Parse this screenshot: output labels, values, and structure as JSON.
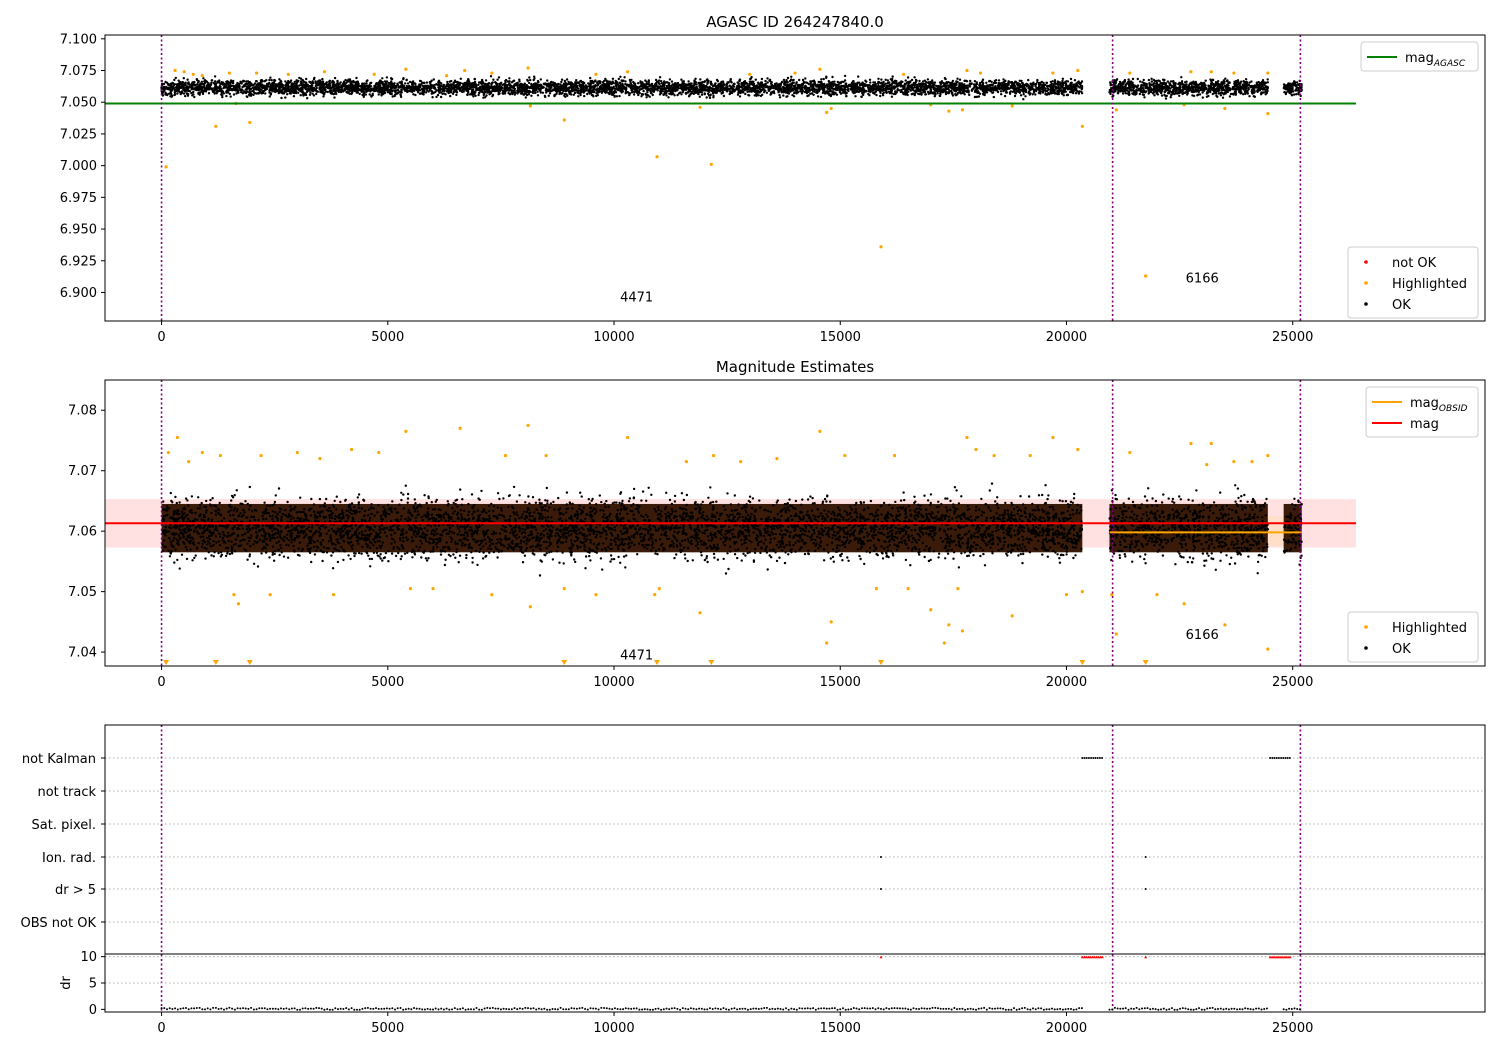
{
  "chart_data": [
    {
      "type": "scatter",
      "title": "AGASC ID 264247840.0",
      "xlim": [
        -1250,
        29250
      ],
      "ylim": [
        6.8775,
        7.103
      ],
      "x_ticks": [
        0,
        5000,
        10000,
        15000,
        20000,
        25000
      ],
      "x_tick_labels": [
        "0",
        "5000",
        "10000",
        "15000",
        "20000",
        "25000"
      ],
      "y_ticks": [
        6.9,
        6.925,
        6.95,
        6.975,
        7.0,
        7.025,
        7.05,
        7.075,
        7.1
      ],
      "y_tick_labels": [
        "6.900",
        "6.925",
        "6.950",
        "6.975",
        "7.000",
        "7.025",
        "7.050",
        "7.075",
        "7.100"
      ],
      "obs_boundaries": [
        0,
        21020,
        25170
      ],
      "obs_segments": [
        [
          0,
          20350
        ],
        [
          20950,
          24450
        ],
        [
          24800,
          25200
        ]
      ],
      "obs_labels": [
        {
          "x": 10500,
          "y": 6.893,
          "text": "4471"
        },
        {
          "x": 23000,
          "y": 6.908,
          "text": "6166"
        }
      ],
      "point_band": {
        "center": 7.0615,
        "spread": 0.0055
      },
      "lines": [
        {
          "label_main": "mag",
          "label_sub": "AGASC",
          "color": "#008000",
          "y": 7.049,
          "x_range": [
            -1250,
            26400
          ]
        }
      ],
      "highlighted_points": [
        [
          100,
          6.999
        ],
        [
          300,
          7.075
        ],
        [
          500,
          7.074
        ],
        [
          700,
          7.072
        ],
        [
          900,
          7.071
        ],
        [
          1200,
          7.031
        ],
        [
          1500,
          7.073
        ],
        [
          1650,
          7.049
        ],
        [
          1950,
          7.034
        ],
        [
          2100,
          7.073
        ],
        [
          2800,
          7.072
        ],
        [
          3600,
          7.074
        ],
        [
          4700,
          7.072
        ],
        [
          5400,
          7.076
        ],
        [
          6300,
          7.071
        ],
        [
          6700,
          7.075
        ],
        [
          7300,
          7.073
        ],
        [
          8100,
          7.077
        ],
        [
          8150,
          7.047
        ],
        [
          8900,
          7.036
        ],
        [
          9600,
          7.072
        ],
        [
          10300,
          7.074
        ],
        [
          10950,
          7.007
        ],
        [
          11900,
          7.046
        ],
        [
          12150,
          7.001
        ],
        [
          13000,
          7.072
        ],
        [
          14000,
          7.073
        ],
        [
          14550,
          7.076
        ],
        [
          14700,
          7.042
        ],
        [
          14800,
          7.045
        ],
        [
          15900,
          6.936
        ],
        [
          16400,
          7.072
        ],
        [
          17000,
          7.048
        ],
        [
          17400,
          7.043
        ],
        [
          17700,
          7.044
        ],
        [
          17800,
          7.075
        ],
        [
          18100,
          7.073
        ],
        [
          18800,
          7.047
        ],
        [
          19700,
          7.073
        ],
        [
          20250,
          7.075
        ],
        [
          20350,
          7.031
        ],
        [
          21100,
          7.044
        ],
        [
          21400,
          7.073
        ],
        [
          21750,
          6.913
        ],
        [
          22600,
          7.048
        ],
        [
          22750,
          7.074
        ],
        [
          23200,
          7.074
        ],
        [
          23500,
          7.045
        ],
        [
          23700,
          7.073
        ],
        [
          24450,
          7.041
        ],
        [
          24450,
          7.073
        ]
      ],
      "legend_lines": [
        {
          "label_main": "mag",
          "label_sub": "AGASC",
          "color": "#008000"
        }
      ],
      "legend_points": [
        {
          "label": "not OK",
          "color": "#ff0000"
        },
        {
          "label": "Highlighted",
          "color": "#ffa500"
        },
        {
          "label": "OK",
          "color": "#000000"
        }
      ]
    },
    {
      "type": "scatter",
      "title": "Magnitude Estimates",
      "xlim": [
        -1250,
        29250
      ],
      "ylim": [
        7.0377,
        7.085
      ],
      "x_ticks": [
        0,
        5000,
        10000,
        15000,
        20000,
        25000
      ],
      "x_tick_labels": [
        "0",
        "5000",
        "10000",
        "15000",
        "20000",
        "25000"
      ],
      "y_ticks": [
        7.04,
        7.05,
        7.06,
        7.07,
        7.08
      ],
      "y_tick_labels": [
        "7.04",
        "7.05",
        "7.06",
        "7.07",
        "7.08"
      ],
      "obs_boundaries": [
        0,
        21020,
        25170
      ],
      "obs_segments": [
        [
          0,
          20350
        ],
        [
          20950,
          24450
        ],
        [
          24800,
          25200
        ]
      ],
      "obs_labels": [
        {
          "x": 10500,
          "y": 7.0388,
          "text": "4471"
        },
        {
          "x": 23000,
          "y": 7.0422,
          "text": "6166"
        }
      ],
      "point_band": {
        "center": 7.0605,
        "spread": 0.0045
      },
      "shaded_bands": [
        {
          "x_range": [
            -1250,
            26400
          ],
          "y_range": [
            7.0573,
            7.0653
          ],
          "color": "#ffb3b3"
        },
        {
          "x_range": [
            20950,
            25200
          ],
          "y_range": [
            7.0575,
            7.0625
          ],
          "color": "#ffd9a8"
        }
      ],
      "lines": [
        {
          "label_main": "mag",
          "label_sub": "OBSID",
          "color": "#ffa500",
          "y": 7.0598,
          "x_range": [
            20950,
            25200
          ]
        },
        {
          "label_main": "mag",
          "label_sub": "",
          "color": "#ff0000",
          "y": 7.0613,
          "x_range": [
            -1250,
            26400
          ]
        }
      ],
      "highlighted_points": [
        [
          150,
          7.073
        ],
        [
          350,
          7.0755
        ],
        [
          600,
          7.0715
        ],
        [
          900,
          7.073
        ],
        [
          1300,
          7.0725
        ],
        [
          1600,
          7.0495
        ],
        [
          1700,
          7.048
        ],
        [
          2200,
          7.0725
        ],
        [
          2400,
          7.0495
        ],
        [
          3000,
          7.073
        ],
        [
          3500,
          7.072
        ],
        [
          3800,
          7.0495
        ],
        [
          4200,
          7.0735
        ],
        [
          4800,
          7.073
        ],
        [
          5400,
          7.0765
        ],
        [
          5500,
          7.0505
        ],
        [
          6000,
          7.0505
        ],
        [
          6600,
          7.077
        ],
        [
          7300,
          7.0495
        ],
        [
          7600,
          7.0725
        ],
        [
          8100,
          7.0775
        ],
        [
          8150,
          7.0475
        ],
        [
          8500,
          7.0725
        ],
        [
          8900,
          7.0505
        ],
        [
          9600,
          7.0495
        ],
        [
          10300,
          7.0755
        ],
        [
          10900,
          7.0495
        ],
        [
          11000,
          7.0505
        ],
        [
          11600,
          7.0715
        ],
        [
          11900,
          7.0465
        ],
        [
          12200,
          7.0725
        ],
        [
          12800,
          7.0715
        ],
        [
          13600,
          7.072
        ],
        [
          14550,
          7.0765
        ],
        [
          14700,
          7.0415
        ],
        [
          14800,
          7.045
        ],
        [
          15100,
          7.0725
        ],
        [
          15800,
          7.0505
        ],
        [
          16200,
          7.0725
        ],
        [
          16500,
          7.0505
        ],
        [
          17000,
          7.047
        ],
        [
          17300,
          7.0415
        ],
        [
          17400,
          7.0445
        ],
        [
          17600,
          7.0505
        ],
        [
          17800,
          7.0755
        ],
        [
          17700,
          7.0435
        ],
        [
          18000,
          7.0735
        ],
        [
          18400,
          7.0725
        ],
        [
          18800,
          7.046
        ],
        [
          19200,
          7.0725
        ],
        [
          19700,
          7.0755
        ],
        [
          20000,
          7.0495
        ],
        [
          20250,
          7.0735
        ],
        [
          20350,
          7.05
        ],
        [
          21000,
          7.0495
        ],
        [
          21100,
          7.043
        ],
        [
          21400,
          7.073
        ],
        [
          22000,
          7.0495
        ],
        [
          22600,
          7.048
        ],
        [
          22750,
          7.0745
        ],
        [
          23100,
          7.071
        ],
        [
          23200,
          7.0745
        ],
        [
          23500,
          7.0445
        ],
        [
          23700,
          7.0715
        ],
        [
          24100,
          7.0715
        ],
        [
          24450,
          7.0405
        ],
        [
          24450,
          7.0725
        ]
      ],
      "lower_limit_markers": [
        100,
        1200,
        1950,
        8900,
        10950,
        12150,
        15900,
        20350,
        21750
      ],
      "legend_lines": [
        {
          "label_main": "mag",
          "label_sub": "OBSID",
          "color": "#ffa500"
        },
        {
          "label_main": "mag",
          "label_sub": "",
          "color": "#ff0000"
        }
      ],
      "legend_points": [
        {
          "label": "Highlighted",
          "color": "#ffa500"
        },
        {
          "label": "OK",
          "color": "#000000"
        }
      ]
    },
    {
      "type": "scatter",
      "title": "",
      "xlim": [
        -1250,
        29250
      ],
      "categories": [
        "not Kalman",
        "not track",
        "Sat. pixel.",
        "Ion. rad.",
        "dr > 5",
        "OBS not OK"
      ],
      "obs_boundaries": [
        0,
        21020,
        25170
      ],
      "flag_points": {
        "not Kalman": [
          [
            20350,
            20800
          ],
          [
            24500,
            24950
          ]
        ],
        "not track": [],
        "Sat. pixel.": [],
        "Ion. rad.": [
          [
            15900,
            15900
          ],
          [
            21750,
            21750
          ]
        ],
        "dr > 5": [
          [
            15900,
            15900
          ],
          [
            21750,
            21750
          ]
        ],
        "OBS not OK": []
      }
    },
    {
      "type": "scatter",
      "title": "",
      "xlim": [
        -1250,
        29250
      ],
      "ylim": [
        -0.5,
        10.5
      ],
      "ylabel": "dr",
      "y_ticks": [
        0,
        5,
        10
      ],
      "y_tick_labels": [
        "0",
        "5",
        "10"
      ],
      "x_ticks": [
        0,
        5000,
        10000,
        15000,
        20000,
        25000
      ],
      "x_tick_labels": [
        "0",
        "5000",
        "10000",
        "15000",
        "20000",
        "25000"
      ],
      "obs_boundaries": [
        0,
        21020,
        25170
      ],
      "obs_segments": [
        [
          0,
          20350
        ],
        [
          20950,
          24450
        ],
        [
          24800,
          25200
        ]
      ],
      "clipped_ranges": [
        [
          20350,
          20800
        ],
        [
          24500,
          24950
        ]
      ],
      "clipped_singles": [
        15900,
        21750
      ]
    }
  ]
}
